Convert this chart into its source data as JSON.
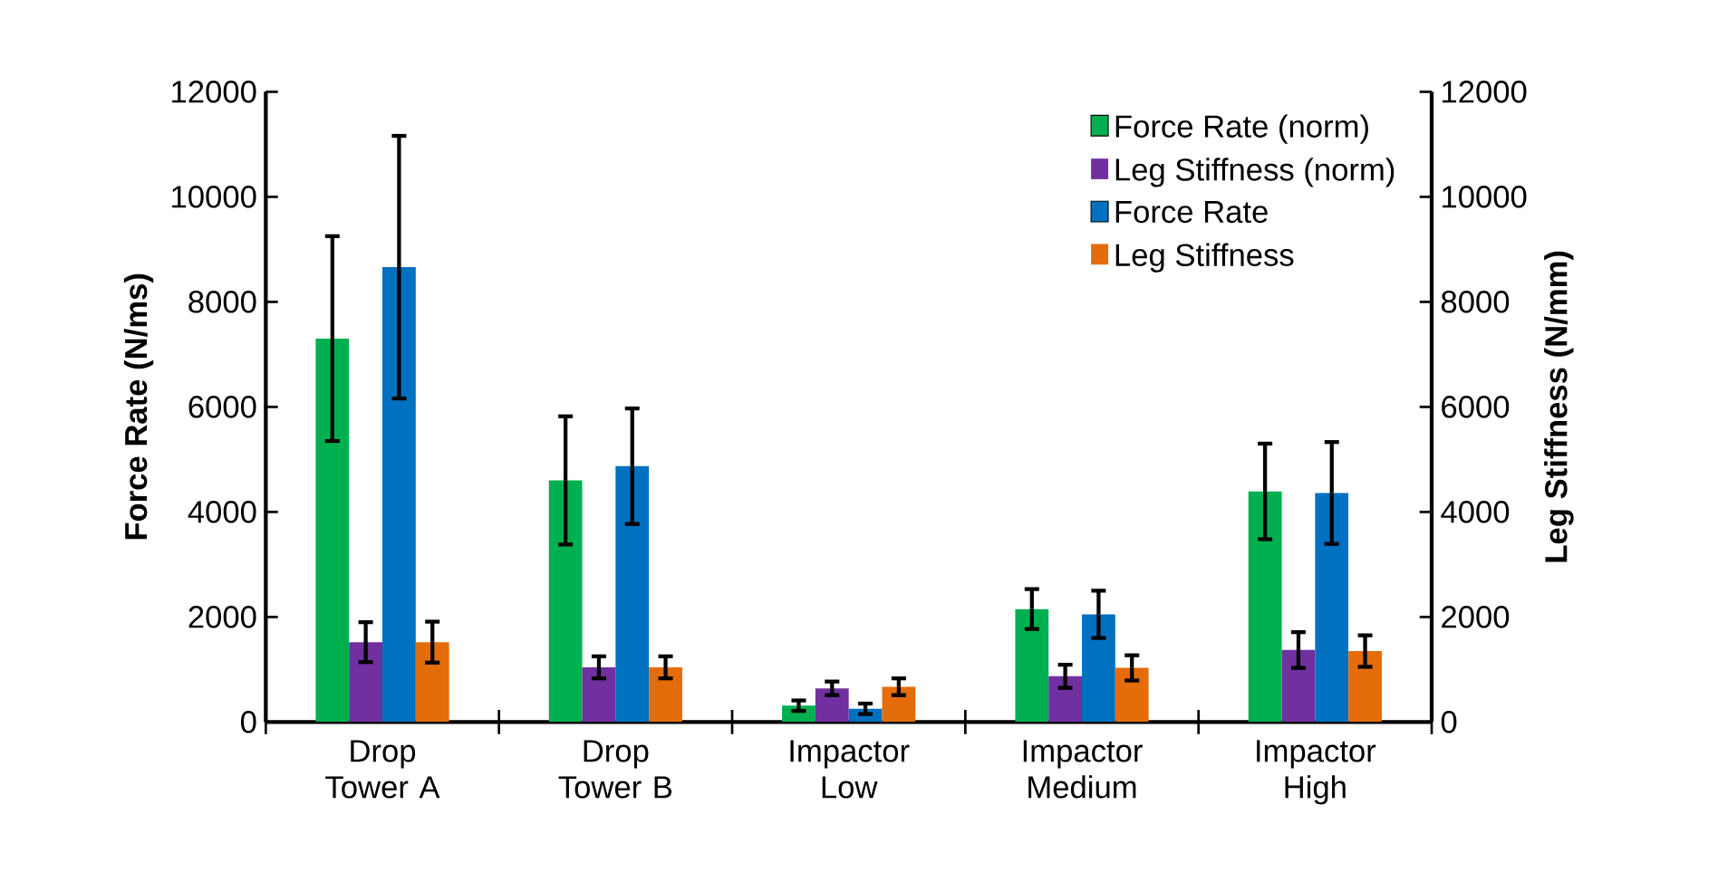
{
  "chart_data": {
    "type": "bar",
    "ylabel": "Force Rate (N/ms)",
    "y2label": "Leg Stiffness (N/mm)",
    "categories": [
      "Drop Tower A",
      "Drop Tower B",
      "Impactor Low",
      "Impactor Medium",
      "Impactor High"
    ],
    "series": [
      {
        "name": "Force Rate (norm)",
        "color": "#00b050",
        "values": [
          7300,
          4600,
          310,
          2150,
          4390
        ],
        "errors": [
          1950,
          1220,
          100,
          380,
          910
        ]
      },
      {
        "name": "Leg Stiffness (norm)",
        "color": "#7030a0",
        "axis": "y2",
        "values": [
          1520,
          1040,
          640,
          870,
          1370
        ],
        "errors": [
          380,
          210,
          130,
          220,
          340
        ]
      },
      {
        "name": "Force Rate",
        "color": "#0070c0",
        "values": [
          8660,
          4870,
          250,
          2050,
          4360
        ],
        "errors": [
          2500,
          1100,
          100,
          450,
          970
        ]
      },
      {
        "name": "Leg Stiffness",
        "color": "#e46c0a",
        "axis": "y2",
        "values": [
          1520,
          1040,
          670,
          1030,
          1350
        ],
        "errors": [
          390,
          210,
          160,
          240,
          300
        ]
      }
    ],
    "ylim": [
      0,
      12000
    ],
    "yticks": [
      0,
      2000,
      4000,
      6000,
      8000,
      10000,
      12000
    ],
    "y2lim": [
      0,
      12000
    ],
    "y2ticks": [
      0,
      2000,
      4000,
      6000,
      8000,
      10000,
      12000
    ],
    "grid": false,
    "legend": "top right"
  }
}
